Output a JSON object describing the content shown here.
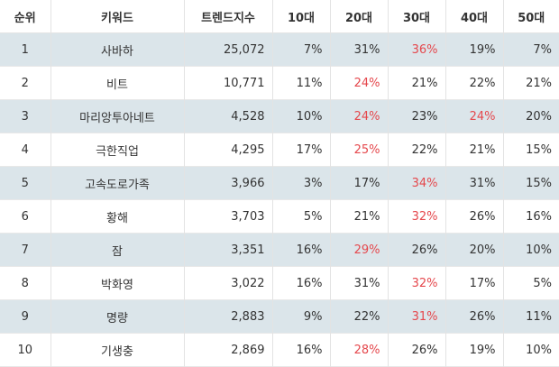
{
  "headers": [
    "순위",
    "키워드",
    "트렌드지수",
    "10대",
    "20대",
    "30대",
    "40대",
    "50대"
  ],
  "highlight_color": "#e5484d",
  "shade_color": "#dbe5ea",
  "rows": [
    {
      "rank": "1",
      "keyword": "사바하",
      "trend": "25,072",
      "p10": "7%",
      "p20": "31%",
      "p30": "36%",
      "p40": "19%",
      "p50": "7%",
      "highlight": "p30"
    },
    {
      "rank": "2",
      "keyword": "비트",
      "trend": "10,771",
      "p10": "11%",
      "p20": "24%",
      "p30": "21%",
      "p40": "22%",
      "p50": "21%",
      "highlight": "p20"
    },
    {
      "rank": "3",
      "keyword": "마리앙투아네트",
      "trend": "4,528",
      "p10": "10%",
      "p20": "24%",
      "p30": "23%",
      "p40": "24%",
      "p50": "20%",
      "highlight": [
        "p20",
        "p40"
      ]
    },
    {
      "rank": "4",
      "keyword": "극한직업",
      "trend": "4,295",
      "p10": "17%",
      "p20": "25%",
      "p30": "22%",
      "p40": "21%",
      "p50": "15%",
      "highlight": "p20"
    },
    {
      "rank": "5",
      "keyword": "고속도로가족",
      "trend": "3,966",
      "p10": "3%",
      "p20": "17%",
      "p30": "34%",
      "p40": "31%",
      "p50": "15%",
      "highlight": "p30"
    },
    {
      "rank": "6",
      "keyword": "황해",
      "trend": "3,703",
      "p10": "5%",
      "p20": "21%",
      "p30": "32%",
      "p40": "26%",
      "p50": "16%",
      "highlight": "p30"
    },
    {
      "rank": "7",
      "keyword": "잠",
      "trend": "3,351",
      "p10": "16%",
      "p20": "29%",
      "p30": "26%",
      "p40": "20%",
      "p50": "10%",
      "highlight": "p20"
    },
    {
      "rank": "8",
      "keyword": "박화영",
      "trend": "3,022",
      "p10": "16%",
      "p20": "31%",
      "p30": "32%",
      "p40": "17%",
      "p50": "5%",
      "highlight": "p30"
    },
    {
      "rank": "9",
      "keyword": "명량",
      "trend": "2,883",
      "p10": "9%",
      "p20": "22%",
      "p30": "31%",
      "p40": "26%",
      "p50": "11%",
      "highlight": "p30"
    },
    {
      "rank": "10",
      "keyword": "기생충",
      "trend": "2,869",
      "p10": "16%",
      "p20": "28%",
      "p30": "26%",
      "p40": "19%",
      "p50": "10%",
      "highlight": "p20"
    }
  ]
}
